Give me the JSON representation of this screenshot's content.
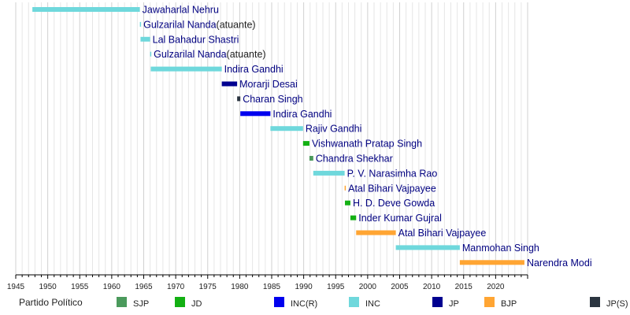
{
  "chart_data": {
    "type": "bar",
    "subtype": "timeline",
    "xlim": [
      1945,
      2025
    ],
    "x_ticks": [
      1945,
      1950,
      1955,
      1960,
      1965,
      1970,
      1975,
      1980,
      1985,
      1990,
      1995,
      2000,
      2005,
      2010,
      2015,
      2020
    ],
    "grid": true,
    "bars": [
      {
        "name": "Jawaharlal Nehru",
        "note": "",
        "start": 1947.6,
        "end": 1964.4,
        "party": "INC"
      },
      {
        "name": "Gulzarilal Nanda",
        "note": "(atuante)",
        "start": 1964.4,
        "end": 1964.5,
        "party": "INC"
      },
      {
        "name": "Lal Bahadur Shastri",
        "note": "",
        "start": 1964.5,
        "end": 1966.0,
        "party": "INC"
      },
      {
        "name": "Gulzarilal Nanda",
        "note": "(atuante)",
        "start": 1966.0,
        "end": 1966.1,
        "party": "INC"
      },
      {
        "name": "Indira Gandhi",
        "note": "",
        "start": 1966.1,
        "end": 1977.2,
        "party": "INC"
      },
      {
        "name": "Morarji Desai",
        "note": "",
        "start": 1977.2,
        "end": 1979.6,
        "party": "JP"
      },
      {
        "name": "Charan Singh",
        "note": "",
        "start": 1979.6,
        "end": 1980.1,
        "party": "JP(S)"
      },
      {
        "name": "Indira Gandhi",
        "note": "",
        "start": 1980.1,
        "end": 1984.8,
        "party": "INC(R)"
      },
      {
        "name": "Rajiv Gandhi",
        "note": "",
        "start": 1984.8,
        "end": 1989.9,
        "party": "INC"
      },
      {
        "name": "Vishwanath Pratap Singh",
        "note": "",
        "start": 1989.9,
        "end": 1990.9,
        "party": "JD"
      },
      {
        "name": "Chandra Shekhar",
        "note": "",
        "start": 1990.9,
        "end": 1991.5,
        "party": "SJP"
      },
      {
        "name": "P. V. Narasimha Rao",
        "note": "",
        "start": 1991.5,
        "end": 1996.4,
        "party": "INC"
      },
      {
        "name": "Atal Bihari Vajpayee",
        "note": "",
        "start": 1996.4,
        "end": 1996.45,
        "party": "BJP"
      },
      {
        "name": "H. D. Deve Gowda",
        "note": "",
        "start": 1996.45,
        "end": 1997.3,
        "party": "JD"
      },
      {
        "name": "Inder Kumar Gujral",
        "note": "",
        "start": 1997.3,
        "end": 1998.2,
        "party": "JD"
      },
      {
        "name": "Atal Bihari Vajpayee",
        "note": "",
        "start": 1998.2,
        "end": 2004.4,
        "party": "BJP"
      },
      {
        "name": "Manmohan Singh",
        "note": "",
        "start": 2004.4,
        "end": 2014.4,
        "party": "INC"
      },
      {
        "name": "Narendra Modi",
        "note": "",
        "start": 2014.4,
        "end": 2024.5,
        "party": "BJP"
      }
    ],
    "legend": {
      "title": "Partido Político",
      "placement": "bottom",
      "entries": [
        {
          "label": "SJP",
          "color": "#4b9a5c"
        },
        {
          "label": "JD",
          "color": "#13b013"
        },
        {
          "label": "INC(R)",
          "color": "#0000ee"
        },
        {
          "label": "INC",
          "color": "#6fd8dc"
        },
        {
          "label": "JP",
          "color": "#000090"
        },
        {
          "label": "BJP",
          "color": "#ffa533"
        },
        {
          "label": "JP(S)",
          "color": "#2b3540"
        }
      ]
    }
  }
}
